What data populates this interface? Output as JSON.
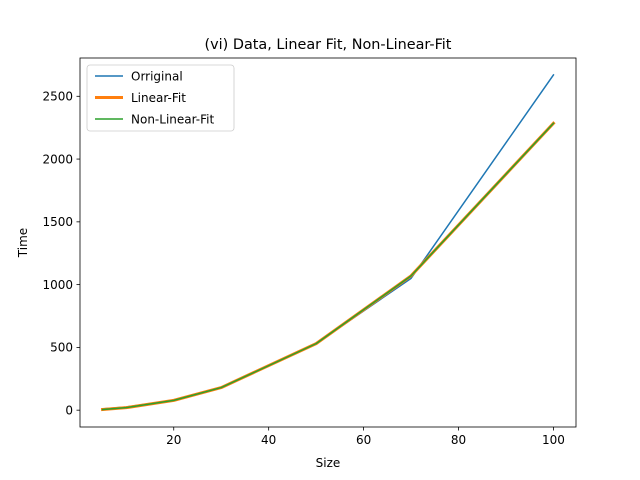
{
  "chart_data": {
    "type": "line",
    "title": "(vi) Data, Linear Fit, Non-Linear-Fit",
    "xlabel": "Size",
    "ylabel": "Time",
    "xlim": [
      0.25,
      104.75
    ],
    "ylim": [
      -134,
      2805
    ],
    "xticks": [
      20,
      40,
      60,
      80,
      100
    ],
    "yticks": [
      0,
      500,
      1000,
      1500,
      2000,
      2500
    ],
    "grid": false,
    "legend_position": "upper-left",
    "x": [
      5,
      10,
      20,
      30,
      50,
      70,
      100
    ],
    "series": [
      {
        "name": "Orriginal",
        "color": "#1f77b4",
        "values": [
          10,
          25,
          80,
          180,
          530,
          1050,
          2670
        ]
      },
      {
        "name": "Linear-Fit",
        "color": "#ff7f0e",
        "values": [
          5,
          20,
          78,
          180,
          530,
          1070,
          2285
        ]
      },
      {
        "name": "Non-Linear-Fit",
        "color": "#2ca02c",
        "values": [
          5,
          20,
          78,
          180,
          530,
          1070,
          2285
        ]
      }
    ]
  }
}
